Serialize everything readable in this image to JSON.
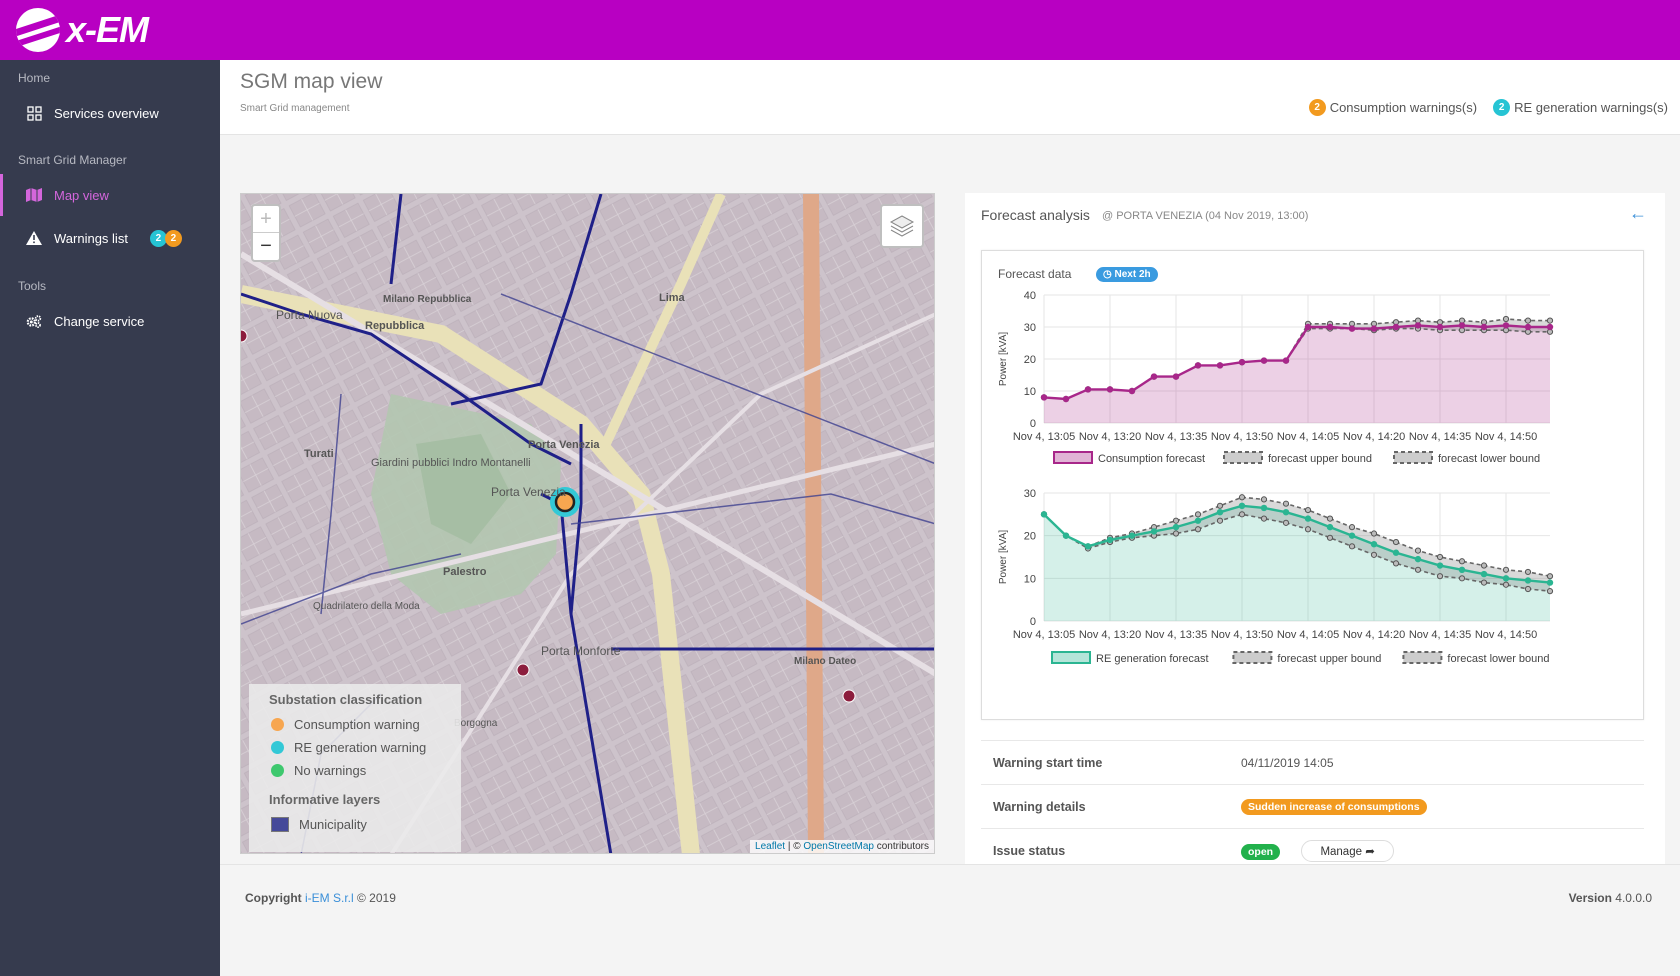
{
  "brand": {
    "name": "x-EM"
  },
  "sidebar": {
    "sections": [
      {
        "title": "Home"
      },
      {
        "title": "Smart Grid Manager"
      },
      {
        "title": "Tools"
      }
    ],
    "items": [
      {
        "label": "Services overview",
        "icon": "grid-icon"
      },
      {
        "label": "Map view",
        "icon": "map-icon"
      },
      {
        "label": "Warnings list",
        "icon": "warning-icon",
        "badge_re": "2",
        "badge_consumption": "2"
      },
      {
        "label": "Change service",
        "icon": "cogs-icon"
      }
    ]
  },
  "page": {
    "title": "SGM map view",
    "subtitle": "Smart Grid management"
  },
  "warnings_summary": {
    "consumption_count": "2",
    "consumption_label": "Consumption warnings(s)",
    "re_count": "2",
    "re_label": "RE generation warnings(s)"
  },
  "map": {
    "zoom_in": "+",
    "zoom_out": "−",
    "street_labels": {
      "porta_nuova": "Porta Nuova",
      "repubblica": "Repubblica",
      "milano_repubblica": "Milano Repubblica",
      "lima": "Lima",
      "turati": "Turati",
      "giardini": "Giardini pubblici Indro Montanelli",
      "porta_venezia_station": "Porta Venezia",
      "porta_venezia": "Porta Venezia",
      "palestro": "Palestro",
      "quadrilatero": "Quadrilatero della Moda",
      "porta_monforte": "Porta Monforte",
      "milano_dateo": "Milano Dateo",
      "borgogna": "Borgogna"
    },
    "legend": {
      "substation_title": "Substation classification",
      "items": [
        {
          "label": "Consumption warning",
          "color": "#f7a650"
        },
        {
          "label": "RE generation warning",
          "color": "#33c8d6"
        },
        {
          "label": "No warnings",
          "color": "#3ec86e"
        }
      ],
      "layers_title": "Informative layers",
      "layers": [
        {
          "label": "Municipality",
          "color": "#2a2e8c"
        }
      ]
    },
    "attribution": {
      "leaflet": "Leaflet",
      "sep": " | © ",
      "osm": "OpenStreetMap",
      "tail": " contributors"
    }
  },
  "forecast": {
    "title": "Forecast analysis",
    "subtitle": "@ PORTA VENEZIA (04 Nov 2019, 13:00)",
    "data_label": "Forecast data",
    "next_label": "Next 2h",
    "back_icon": "arrow-left-icon"
  },
  "chart_data": [
    {
      "type": "area",
      "ylabel": "Power [kVA]",
      "ylim": [
        0,
        40
      ],
      "yticks": [
        0,
        10,
        20,
        30,
        40
      ],
      "x_tick_labels": [
        "Nov 4, 13:05",
        "Nov 4, 13:20",
        "Nov 4, 13:35",
        "Nov 4, 13:50",
        "Nov 4, 14:05",
        "Nov 4, 14:20",
        "Nov 4, 14:35",
        "Nov 4, 14:50"
      ],
      "x_minutes": [
        0,
        5,
        10,
        15,
        20,
        25,
        30,
        35,
        40,
        45,
        50,
        55,
        60,
        65,
        70,
        75,
        80,
        85,
        90,
        95,
        100,
        105,
        110,
        115
      ],
      "series": [
        {
          "name": "Consumption forecast",
          "color": "#a8278a",
          "values": [
            8,
            7.5,
            10.5,
            10.5,
            10,
            14.5,
            14.5,
            18,
            18,
            19,
            19.5,
            19.5,
            30,
            30,
            29.5,
            29.5,
            30,
            30.5,
            30,
            30.5,
            30,
            30.5,
            30,
            30
          ]
        },
        {
          "name": "forecast upper bound",
          "values": [
            8,
            7.5,
            10.5,
            10.5,
            10,
            14.5,
            14.5,
            18,
            18,
            19,
            19.5,
            19.5,
            31,
            31,
            31,
            31,
            31.5,
            32,
            31.5,
            32,
            31.5,
            32.5,
            32,
            32
          ]
        },
        {
          "name": "forecast lower bound",
          "values": [
            8,
            7.5,
            10.5,
            10.5,
            10,
            14.5,
            14.5,
            18,
            18,
            19,
            19.5,
            19.5,
            29.5,
            29.5,
            29.5,
            29,
            29.5,
            29.5,
            29,
            29,
            29,
            29,
            28.5,
            28.5
          ]
        }
      ]
    },
    {
      "type": "area",
      "ylabel": "Power [kVA]",
      "ylim": [
        0,
        30
      ],
      "yticks": [
        0,
        10,
        20,
        30
      ],
      "x_tick_labels": [
        "Nov 4, 13:05",
        "Nov 4, 13:20",
        "Nov 4, 13:35",
        "Nov 4, 13:50",
        "Nov 4, 14:05",
        "Nov 4, 14:20",
        "Nov 4, 14:35",
        "Nov 4, 14:50"
      ],
      "x_minutes": [
        0,
        5,
        10,
        15,
        20,
        25,
        30,
        35,
        40,
        45,
        50,
        55,
        60,
        65,
        70,
        75,
        80,
        85,
        90,
        95,
        100,
        105,
        110,
        115
      ],
      "series": [
        {
          "name": "RE generation forecast",
          "color": "#2bb592",
          "values": [
            25,
            20,
            17.5,
            19,
            20,
            21,
            22,
            23.5,
            25.5,
            27,
            26.5,
            25.5,
            24,
            22,
            20,
            18,
            16,
            14.5,
            13,
            12,
            11,
            10,
            9.5,
            9
          ]
        },
        {
          "name": "forecast upper bound",
          "values": [
            25,
            20,
            17.5,
            19.5,
            20.5,
            22,
            23.5,
            25,
            27,
            29,
            28.5,
            27.5,
            26,
            24,
            22,
            20.5,
            18.5,
            16.5,
            15,
            14,
            13,
            12,
            11.5,
            10.5
          ]
        },
        {
          "name": "forecast lower bound",
          "values": [
            25,
            20,
            17,
            18.5,
            19.5,
            20,
            20.5,
            21.5,
            23.5,
            25,
            24,
            23,
            21.5,
            19.5,
            17.5,
            15.5,
            13.5,
            12,
            10.5,
            10,
            9,
            8.5,
            7.5,
            7
          ]
        }
      ]
    }
  ],
  "details": {
    "start_label": "Warning start time",
    "start_value": "04/11/2019 14:05",
    "details_label": "Warning details",
    "details_value": "Sudden increase of consumptions",
    "status_label": "Issue status",
    "status_value": "open",
    "manage_label": "Manage"
  },
  "footer": {
    "copyright_prefix": "Copyright ",
    "company": "i-EM S.r.l",
    "year_text": " © 2019",
    "version_label": "Version",
    "version": "4.0.0.0"
  }
}
